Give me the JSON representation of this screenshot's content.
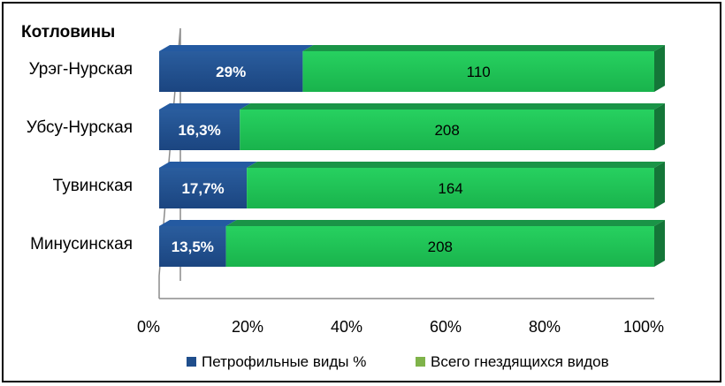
{
  "chart_data": {
    "type": "bar",
    "orientation": "horizontal",
    "stacked": "100%",
    "title": "Котловины",
    "categories": [
      "Урэг-Нурская",
      "Убсу-Нурская",
      "Тувинская",
      "Минусинская"
    ],
    "series": [
      {
        "name": "Петрофильные виды %",
        "color": "#1f4e8c",
        "values": [
          29,
          16.3,
          17.7,
          13.5
        ],
        "labels": [
          "29%",
          "16,3%",
          "17,7%",
          "13,5%"
        ]
      },
      {
        "name": "Всего гнездящихся видов",
        "color": "#22c55e",
        "values": [
          71,
          83.7,
          82.3,
          86.5
        ],
        "labels": [
          "110",
          "208",
          "164",
          "208"
        ]
      }
    ],
    "xlim": [
      0,
      100
    ],
    "xticks": [
      "0%",
      "20%",
      "40%",
      "60%",
      "80%",
      "100%"
    ],
    "legend_position": "bottom",
    "grid": false
  }
}
